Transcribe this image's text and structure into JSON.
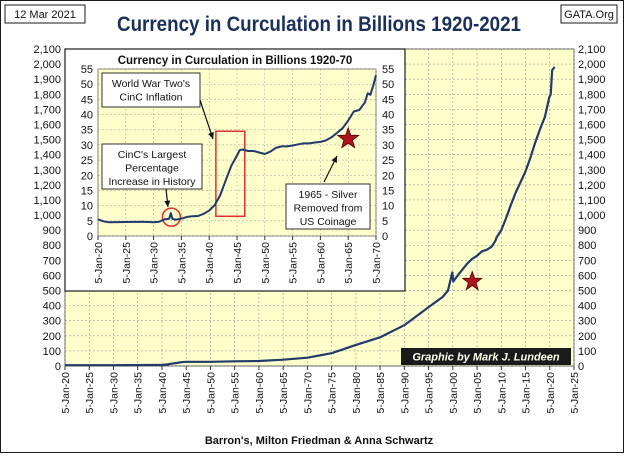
{
  "header": {
    "date": "12 Mar 2021",
    "title": "Currency in Curculation in Billions 1920-2021",
    "source_site": "GATA.Org"
  },
  "footer": {
    "source": "Barron's, Milton Friedman & Anna Schwartz",
    "credit": "Graphic by Mark J. Lundeen"
  },
  "colors": {
    "plot_bg": "#ffffcc",
    "line": "#1f3a6b",
    "star": "#b0131e",
    "highlight": "#e03030",
    "credit_bg": "#1a1a1a",
    "credit_text": "#ffffee"
  },
  "chart_data": [
    {
      "type": "line",
      "title": "Currency in Curculation in Billions 1920-2021",
      "xlabel": "",
      "ylabel": "",
      "xlim": [
        1920,
        2025
      ],
      "ylim": [
        0,
        2100
      ],
      "y_ticks": [
        "0",
        "100",
        "200",
        "300",
        "400",
        "500",
        "600",
        "700",
        "800",
        "900",
        "1,000",
        "1,100",
        "1,200",
        "1,300",
        "1,400",
        "1,500",
        "1,600",
        "1,700",
        "1,800",
        "1,900",
        "2,000",
        "2,100"
      ],
      "x_ticks": [
        "5-Jan-20",
        "5-Jan-25",
        "5-Jan-30",
        "5-Jan-35",
        "5-Jan-40",
        "5-Jan-45",
        "5-Jan-50",
        "5-Jan-55",
        "5-Jan-60",
        "5-Jan-65",
        "5-Jan-70",
        "5-Jan-75",
        "5-Jan-80",
        "5-Jan-85",
        "5-Jan-90",
        "5-Jan-95",
        "5-Jan-00",
        "5-Jan-05",
        "5-Jan-10",
        "5-Jan-15",
        "5-Jan-20",
        "5-Jan-25"
      ],
      "grid": true,
      "series": [
        {
          "x": [
            1920,
            1925,
            1930,
            1933,
            1935,
            1940,
            1941,
            1942,
            1943,
            1944,
            1945,
            1946,
            1950,
            1955,
            1960,
            1965,
            1970,
            1975,
            1980,
            1985,
            1990,
            1995,
            1998,
            1999,
            1999.9,
            2000.1,
            2001,
            2002,
            2003,
            2004,
            2005,
            2006,
            2007,
            2008,
            2008.8,
            2009,
            2010,
            2011,
            2012,
            2013,
            2014,
            2015,
            2016,
            2017,
            2018,
            2019,
            2019.9,
            2020.2,
            2020.5,
            2021
          ],
          "y": [
            5,
            5,
            5,
            6,
            6,
            8,
            10,
            15,
            20,
            25,
            28,
            28,
            28,
            31,
            33,
            42,
            55,
            85,
            140,
            190,
            270,
            390,
            460,
            500,
            620,
            560,
            600,
            640,
            680,
            710,
            730,
            760,
            770,
            790,
            830,
            850,
            900,
            980,
            1070,
            1150,
            1220,
            1290,
            1380,
            1480,
            1570,
            1650,
            1780,
            1800,
            1960,
            1980
          ]
        }
      ],
      "annotations": [
        {
          "type": "star",
          "x": 2004,
          "y": 560
        }
      ]
    },
    {
      "type": "line",
      "title": "Currency in Curculation in Billions 1920-70",
      "xlim": [
        1920,
        1970
      ],
      "ylim": [
        0,
        55
      ],
      "y_ticks": [
        "0",
        "5",
        "10",
        "15",
        "20",
        "25",
        "30",
        "35",
        "40",
        "45",
        "50",
        "55"
      ],
      "x_ticks": [
        "5-Jan-20",
        "5-Jan-25",
        "5-Jan-30",
        "5-Jan-35",
        "5-Jan-40",
        "5-Jan-45",
        "5-Jan-50",
        "5-Jan-55",
        "5-Jan-60",
        "5-Jan-65",
        "5-Jan-70"
      ],
      "grid": true,
      "series": [
        {
          "x": [
            1920,
            1921,
            1922,
            1925,
            1928,
            1930,
            1931,
            1932,
            1932.8,
            1933.1,
            1933.4,
            1934,
            1935,
            1936,
            1937,
            1938,
            1939,
            1940,
            1941,
            1942,
            1943,
            1944,
            1945,
            1945.5,
            1946,
            1947,
            1948,
            1949,
            1950,
            1951,
            1952,
            1953,
            1954,
            1955,
            1956,
            1957,
            1958,
            1959,
            1960,
            1961,
            1962,
            1963,
            1964,
            1965,
            1966,
            1967,
            1968,
            1968.5,
            1969,
            1969.5,
            1970
          ],
          "y": [
            5.5,
            4.8,
            4.5,
            4.6,
            4.7,
            4.5,
            4.7,
            5.5,
            5.7,
            7.5,
            5.6,
            5.4,
            5.7,
            6.3,
            6.5,
            6.6,
            7.3,
            8.4,
            10.2,
            13.5,
            18.5,
            23.2,
            26.5,
            28.3,
            28.5,
            28.0,
            28.0,
            27.5,
            27.0,
            27.8,
            29.0,
            29.5,
            29.5,
            29.8,
            30.2,
            30.5,
            30.5,
            30.8,
            31.0,
            31.5,
            32.5,
            34.0,
            35.5,
            38.0,
            41.0,
            41.5,
            44.0,
            47.0,
            46.5,
            49.5,
            53.0
          ]
        }
      ],
      "annotations": [
        {
          "type": "text",
          "text": "World War Two's CinC Inflation"
        },
        {
          "type": "text",
          "text": "CinC's Largest Percentage Increase in History"
        },
        {
          "type": "text",
          "text": "1965 - Silver Removed from US Coinage"
        },
        {
          "type": "star",
          "x": 1965,
          "y": 32
        }
      ]
    }
  ]
}
